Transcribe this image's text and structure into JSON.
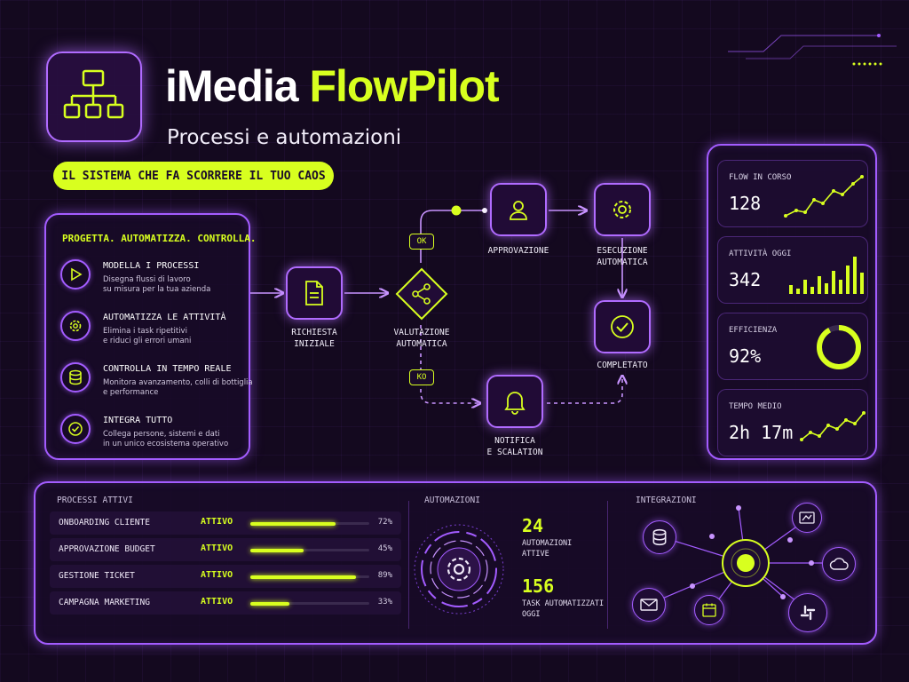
{
  "header": {
    "title_part1": "iMedia",
    "title_part2": "FlowPilot",
    "subtitle": "Processi e automazioni",
    "tagline": "IL SISTEMA CHE FA SCORRERE IL TUO CAOS",
    "logo_icon": "org-chart-icon"
  },
  "features": {
    "heading": "PROGETTA. AUTOMATIZZA. CONTROLLA.",
    "items": [
      {
        "title": "MODELLA I PROCESSI",
        "desc_line1": "Disegna flussi di lavoro",
        "desc_line2": "su misura per la tua azienda",
        "icon": "play-icon"
      },
      {
        "title": "AUTOMATIZZA LE ATTIVITÀ",
        "desc_line1": "Elimina i task ripetitivi",
        "desc_line2": "e riduci gli errori umani",
        "icon": "gear-icon"
      },
      {
        "title": "CONTROLLA IN TEMPO REALE",
        "desc_line1": "Monitora avanzamento, colli di bottiglia",
        "desc_line2": "e performance",
        "icon": "database-icon"
      },
      {
        "title": "INTEGRA TUTTO",
        "desc_line1": "Collega persone, sistemi e dati",
        "desc_line2": "in un unico ecosistema operativo",
        "icon": "check-icon"
      }
    ]
  },
  "flow": {
    "richiesta_l1": "RICHIESTA",
    "richiesta_l2": "INIZIALE",
    "valutazione_l1": "VALUTAZIONE",
    "valutazione_l2": "AUTOMATICA",
    "approvazione": "APPROVAZIONE",
    "esecuzione_l1": "ESECUZIONE",
    "esecuzione_l2": "AUTOMATICA",
    "completato": "COMPLETATO",
    "notifica_l1": "NOTIFICA",
    "notifica_l2": "E SCALATION",
    "ok": "OK",
    "ko": "KO"
  },
  "kpis": [
    {
      "label": "FLOW IN CORSO",
      "value": "128",
      "viz": "line"
    },
    {
      "label": "ATTIVITÀ OGGI",
      "value": "342",
      "viz": "bars"
    },
    {
      "label": "EFFICIENZA",
      "value": "92%",
      "viz": "ring",
      "fraction": 0.92
    },
    {
      "label": "TEMPO MEDIO",
      "value": "2h 17m",
      "viz": "line"
    }
  ],
  "processes": {
    "heading": "PROCESSI ATTIVI",
    "rows": [
      {
        "name": "ONBOARDING CLIENTE",
        "status": "ATTIVO",
        "percent": "72%",
        "progress": 72
      },
      {
        "name": "APPROVAZIONE BUDGET",
        "status": "ATTIVO",
        "percent": "45%",
        "progress": 45
      },
      {
        "name": "GESTIONE TICKET",
        "status": "ATTIVO",
        "percent": "89%",
        "progress": 89
      },
      {
        "name": "CAMPAGNA MARKETING",
        "status": "ATTIVO",
        "percent": "33%",
        "progress": 33
      }
    ]
  },
  "automations": {
    "heading": "AUTOMAZIONI",
    "active_value": "24",
    "active_l1": "AUTOMAZIONI",
    "active_l2": "ATTIVE",
    "tasks_value": "156",
    "tasks_l1": "TASK AUTOMATIZZATI",
    "tasks_l2": "OGGI"
  },
  "integrations": {
    "heading": "INTEGRAZIONI",
    "nodes": [
      "database-icon",
      "chart-icon",
      "cloud-icon",
      "mail-icon",
      "calendar-icon",
      "slack-icon"
    ]
  },
  "colors": {
    "accent": "#d8ff1f",
    "purple": "#a35cff",
    "background": "#14091f"
  }
}
